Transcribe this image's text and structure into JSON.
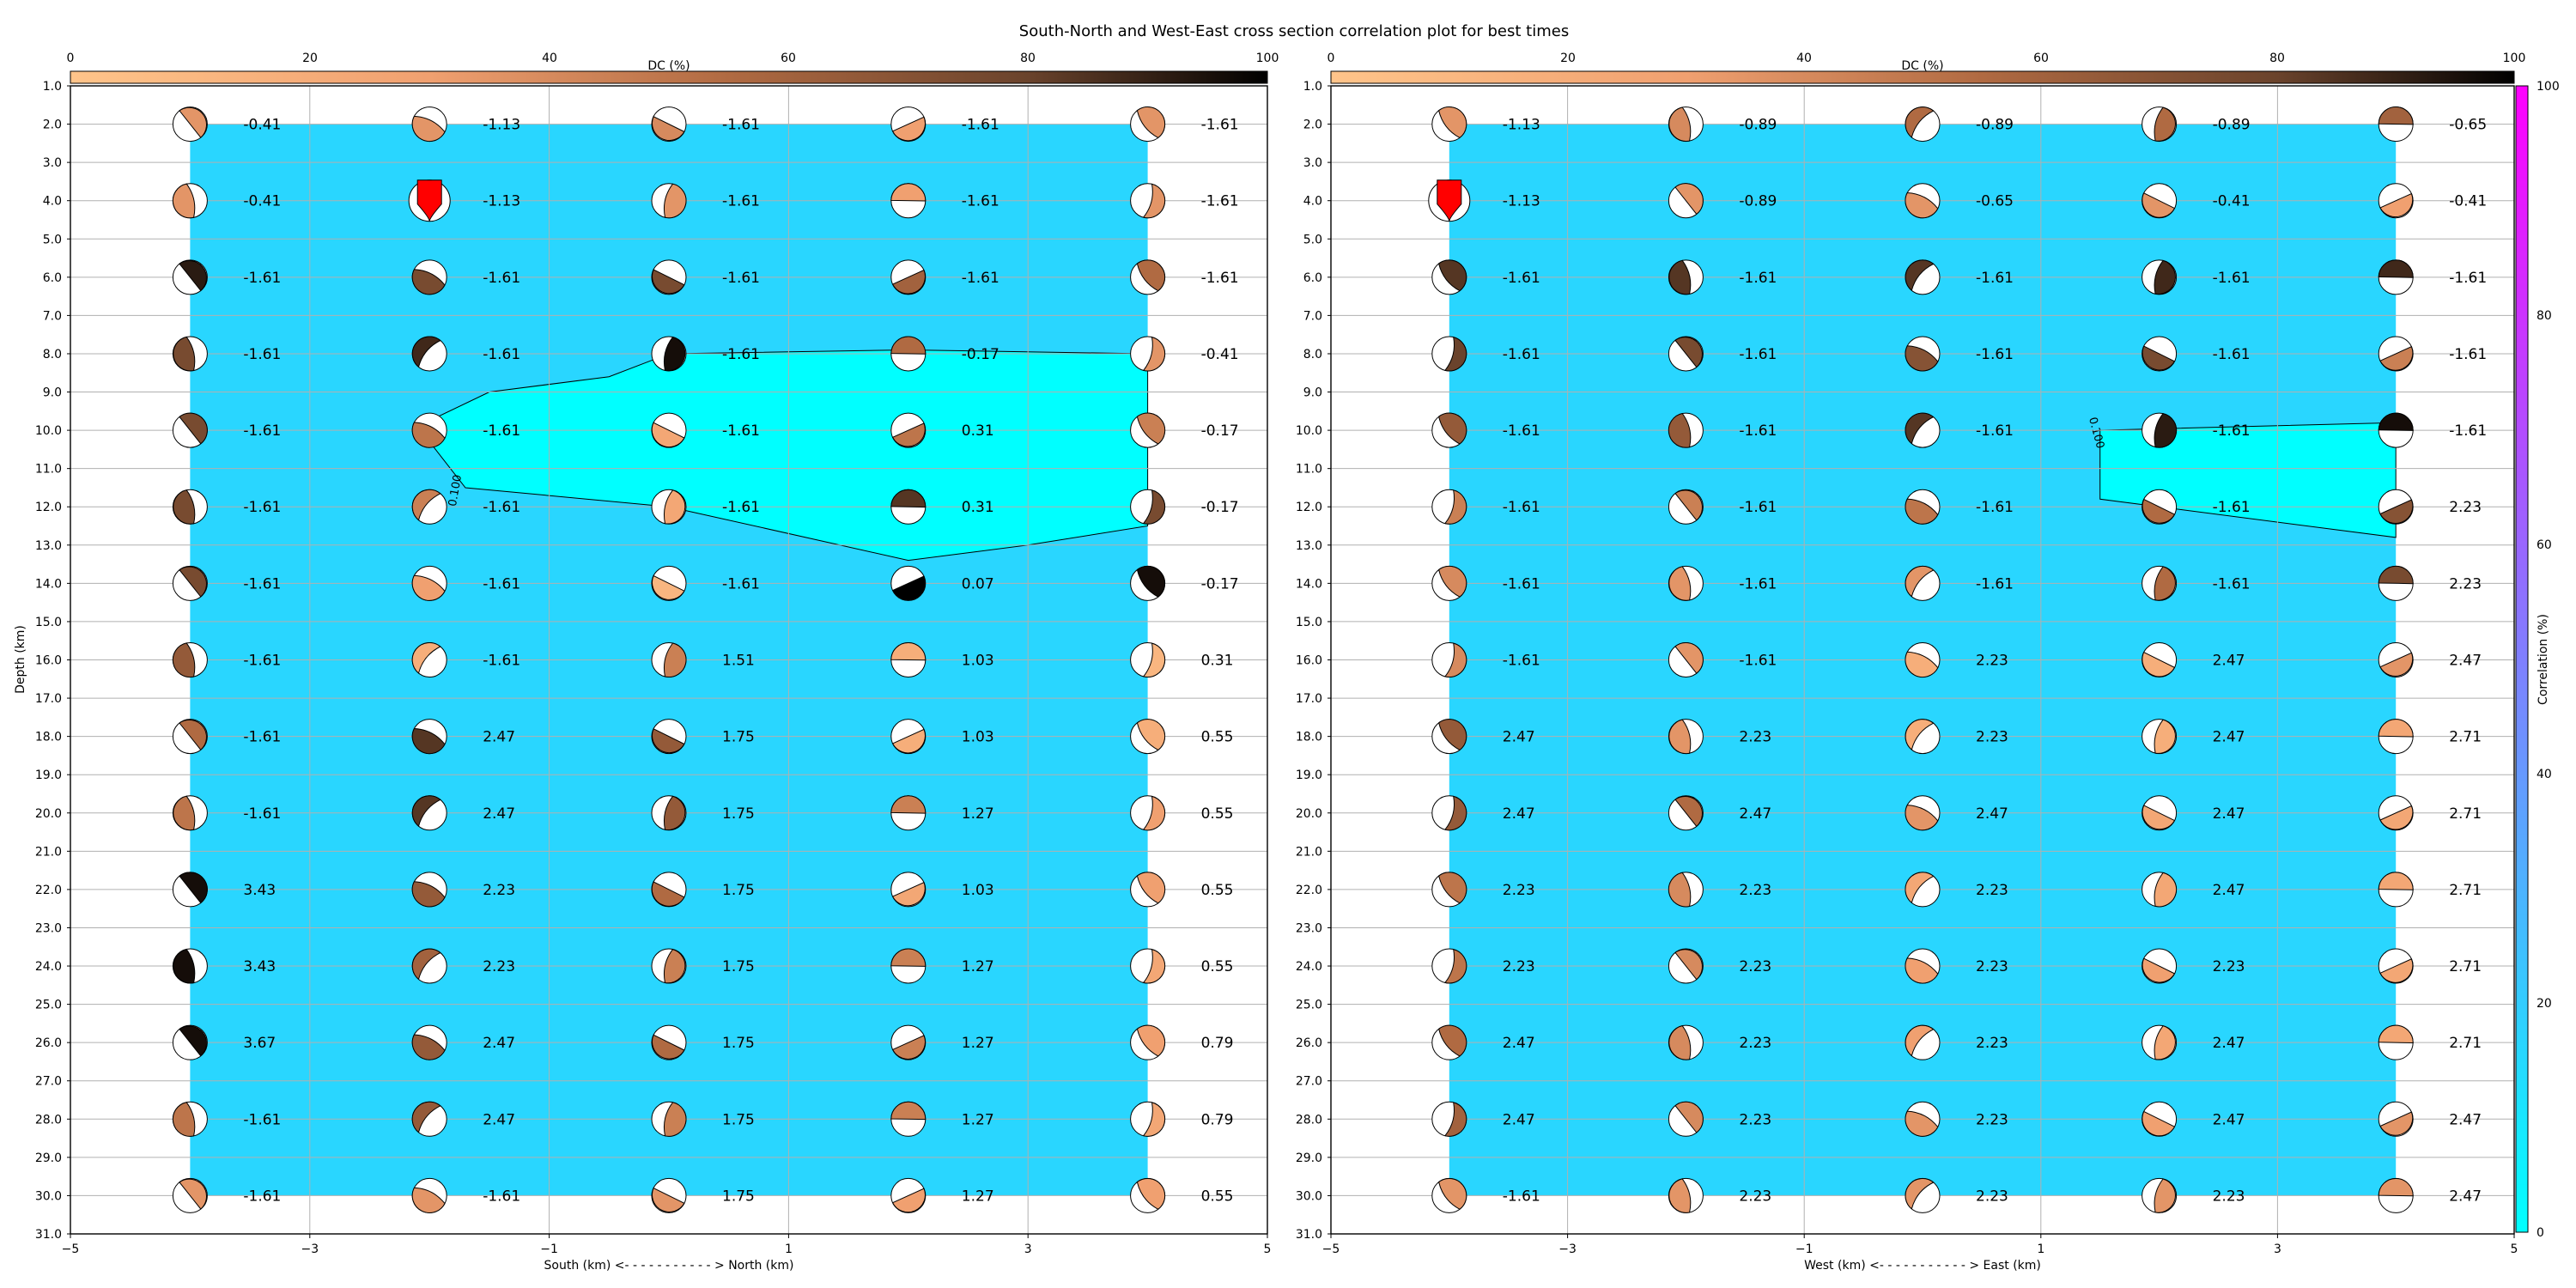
{
  "figure": {
    "title": "South-North and West-East cross section correlation plot for best times"
  },
  "colors": {
    "fill_low": "#00ffff",
    "fill_main": "#29d6ff",
    "dc_cmap": [
      "#ffc48a",
      "#f0a070",
      "#b06a42",
      "#6a432c",
      "#000000"
    ],
    "corr_cmap": [
      "#00ffff",
      "#ff00ff"
    ],
    "nodal_white": "#ffffff",
    "highlight_red": "#ff0000"
  },
  "dc_colorbar": {
    "label": "DC (%)",
    "ticks": [
      0,
      20,
      40,
      60,
      80,
      100
    ]
  },
  "correlation_colorbar": {
    "label": "Correlation (%)",
    "ticks": [
      0,
      20,
      40,
      60,
      80,
      100
    ]
  },
  "chart_data": [
    {
      "type": "heatmap",
      "panel": "south-north",
      "xlabel": "South (km) <- - - - - - - - - - - > North (km)",
      "ylabel": "Depth (km)",
      "xlim": [
        -5,
        5
      ],
      "ylim": [
        31,
        1
      ],
      "xticks": [
        -5,
        -3,
        -1,
        1,
        3,
        5
      ],
      "yticks": [
        1.0,
        2.0,
        3.0,
        4.0,
        5.0,
        6.0,
        7.0,
        8.0,
        9.0,
        10.0,
        11.0,
        12.0,
        13.0,
        14.0,
        15.0,
        16.0,
        17.0,
        18.0,
        19.0,
        20.0,
        21.0,
        22.0,
        23.0,
        24.0,
        25.0,
        26.0,
        27.0,
        28.0,
        29.0,
        30.0,
        31.0
      ],
      "x": [
        -4,
        -2,
        0,
        2,
        4
      ],
      "depths": [
        2,
        4,
        6,
        8,
        10,
        12,
        14,
        16,
        18,
        20,
        22,
        24,
        26,
        28,
        30
      ],
      "contour_label": "0.100",
      "contour_region": [
        [
          4,
          8
        ],
        [
          2,
          7.9
        ],
        [
          0,
          8
        ],
        [
          -0.5,
          8.6
        ],
        [
          -1.5,
          9
        ],
        [
          -2.1,
          9.9
        ],
        [
          -1.7,
          11.5
        ],
        [
          0,
          12
        ],
        [
          2,
          13.4
        ],
        [
          3,
          13
        ],
        [
          4,
          12.5
        ]
      ],
      "time_shifts": [
        [
          -0.41,
          -1.13,
          -1.61,
          -1.61,
          -1.61
        ],
        [
          -0.41,
          -1.13,
          -1.61,
          -1.61,
          -1.61
        ],
        [
          -1.61,
          -1.61,
          -1.61,
          -1.61,
          -1.61
        ],
        [
          -1.61,
          -1.61,
          -1.61,
          -0.17,
          -0.41
        ],
        [
          -1.61,
          -1.61,
          -1.61,
          0.31,
          -0.17
        ],
        [
          -1.61,
          -1.61,
          -1.61,
          0.31,
          -0.17
        ],
        [
          -1.61,
          -1.61,
          -1.61,
          0.07,
          -0.17
        ],
        [
          -1.61,
          -1.61,
          1.51,
          1.03,
          0.31
        ],
        [
          -1.61,
          2.47,
          1.75,
          1.03,
          0.55
        ],
        [
          -1.61,
          2.47,
          1.75,
          1.27,
          0.55
        ],
        [
          3.43,
          2.23,
          1.75,
          1.03,
          0.55
        ],
        [
          3.43,
          2.23,
          1.75,
          1.27,
          0.55
        ],
        [
          3.67,
          2.47,
          1.75,
          1.27,
          0.79
        ],
        [
          -1.61,
          2.47,
          1.75,
          1.27,
          0.79
        ],
        [
          -1.61,
          -1.61,
          1.75,
          1.27,
          0.55
        ]
      ],
      "dc_percent": [
        [
          30,
          30,
          35,
          25,
          30
        ],
        [
          30,
          30,
          30,
          25,
          30
        ],
        [
          90,
          70,
          70,
          55,
          50
        ],
        [
          70,
          85,
          95,
          50,
          30
        ],
        [
          70,
          45,
          20,
          45,
          40
        ],
        [
          70,
          40,
          20,
          80,
          70
        ],
        [
          70,
          25,
          10,
          100,
          95
        ],
        [
          60,
          15,
          40,
          15,
          10
        ],
        [
          50,
          80,
          60,
          15,
          15
        ],
        [
          45,
          80,
          60,
          40,
          25
        ],
        [
          95,
          60,
          50,
          20,
          25
        ],
        [
          95,
          55,
          40,
          40,
          20
        ],
        [
          95,
          60,
          50,
          40,
          25
        ],
        [
          45,
          60,
          40,
          40,
          20
        ],
        [
          30,
          30,
          30,
          25,
          25
        ]
      ],
      "best_node": {
        "x": -2,
        "depth": 4
      }
    },
    {
      "type": "heatmap",
      "panel": "west-east",
      "xlabel": "West (km) <- - - - - - - - - - - > East (km)",
      "ylabel": "",
      "xlim": [
        -5,
        5
      ],
      "ylim": [
        31,
        1
      ],
      "xticks": [
        -5,
        -3,
        -1,
        1,
        3,
        5
      ],
      "yticks": [
        1.0,
        2.0,
        3.0,
        4.0,
        5.0,
        6.0,
        7.0,
        8.0,
        9.0,
        10.0,
        11.0,
        12.0,
        13.0,
        14.0,
        15.0,
        16.0,
        17.0,
        18.0,
        19.0,
        20.0,
        21.0,
        22.0,
        23.0,
        24.0,
        25.0,
        26.0,
        27.0,
        28.0,
        29.0,
        30.0,
        31.0
      ],
      "x": [
        -4,
        -2,
        0,
        2,
        4
      ],
      "depths": [
        2,
        4,
        6,
        8,
        10,
        12,
        14,
        16,
        18,
        20,
        22,
        24,
        26,
        28,
        30
      ],
      "contour_label": "0.100",
      "contour_region": [
        [
          4,
          9.8
        ],
        [
          1.5,
          10
        ],
        [
          1.5,
          11.8
        ],
        [
          4,
          12.8
        ]
      ],
      "time_shifts": [
        [
          -1.13,
          -0.89,
          -0.89,
          -0.89,
          -0.65
        ],
        [
          -1.13,
          -0.89,
          -0.65,
          -0.41,
          -0.41
        ],
        [
          -1.61,
          -1.61,
          -1.61,
          -1.61,
          -1.61
        ],
        [
          -1.61,
          -1.61,
          -1.61,
          -1.61,
          -1.61
        ],
        [
          -1.61,
          -1.61,
          -1.61,
          -1.61,
          -1.61
        ],
        [
          -1.61,
          -1.61,
          -1.61,
          -1.61,
          2.23
        ],
        [
          -1.61,
          -1.61,
          -1.61,
          -1.61,
          2.23
        ],
        [
          -1.61,
          -1.61,
          2.23,
          2.47,
          2.47
        ],
        [
          2.47,
          2.23,
          2.23,
          2.47,
          2.71
        ],
        [
          2.47,
          2.47,
          2.47,
          2.47,
          2.71
        ],
        [
          2.23,
          2.23,
          2.23,
          2.47,
          2.71
        ],
        [
          2.23,
          2.23,
          2.23,
          2.23,
          2.71
        ],
        [
          2.47,
          2.23,
          2.23,
          2.47,
          2.71
        ],
        [
          2.47,
          2.23,
          2.23,
          2.47,
          2.47
        ],
        [
          -1.61,
          2.23,
          2.23,
          2.23,
          2.47
        ]
      ],
      "dc_percent": [
        [
          30,
          35,
          50,
          50,
          55
        ],
        [
          30,
          30,
          30,
          30,
          25
        ],
        [
          80,
          80,
          80,
          85,
          85
        ],
        [
          75,
          70,
          65,
          70,
          40
        ],
        [
          60,
          60,
          80,
          90,
          95
        ],
        [
          40,
          40,
          45,
          50,
          65
        ],
        [
          35,
          30,
          30,
          50,
          70
        ],
        [
          35,
          30,
          15,
          15,
          30
        ],
        [
          60,
          30,
          15,
          15,
          20
        ],
        [
          60,
          50,
          30,
          20,
          20
        ],
        [
          45,
          35,
          20,
          20,
          20
        ],
        [
          45,
          35,
          25,
          25,
          20
        ],
        [
          50,
          35,
          25,
          20,
          20
        ],
        [
          55,
          35,
          30,
          25,
          30
        ],
        [
          30,
          30,
          30,
          30,
          30
        ]
      ],
      "best_node": {
        "x": -4,
        "depth": 4
      }
    }
  ]
}
